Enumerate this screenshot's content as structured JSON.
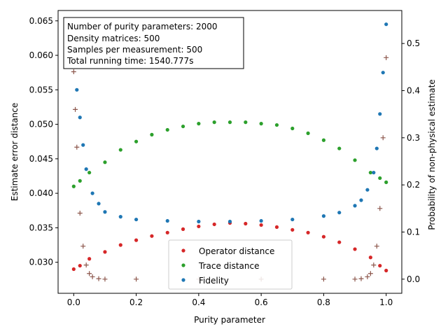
{
  "chart_data": {
    "type": "scatter",
    "xlabel": "Purity parameter",
    "ylabel": "Estimate error distance",
    "ylabel_right": "Probability of non-physical estimate",
    "xlim": [
      -0.05,
      1.05
    ],
    "ylim": [
      0.0255,
      0.0665
    ],
    "ylim_right": [
      -0.03,
      0.57
    ],
    "x_ticks": [
      0.0,
      0.2,
      0.4,
      0.6,
      0.8,
      1.0
    ],
    "x_tick_labels": [
      "0.0",
      "0.2",
      "0.4",
      "0.6",
      "0.8",
      "1.0"
    ],
    "y_ticks": [
      0.03,
      0.035,
      0.04,
      0.045,
      0.05,
      0.055,
      0.06,
      0.065
    ],
    "y_tick_labels": [
      "0.030",
      "0.035",
      "0.040",
      "0.045",
      "0.050",
      "0.055",
      "0.060",
      "0.065"
    ],
    "y_right_ticks": [
      0.0,
      0.1,
      0.2,
      0.3,
      0.4,
      0.5
    ],
    "y_right_tick_labels": [
      "0.0",
      "0.1",
      "0.2",
      "0.3",
      "0.4",
      "0.5"
    ],
    "grid": false,
    "legend_position": "bottom-center",
    "info_box": [
      "Number of purity parameters: 2000",
      "Density matrices: 500",
      "Samples per measurement: 500",
      "Total running time:  1540.777s"
    ],
    "series": [
      {
        "name": "Operator distance",
        "marker": "circle",
        "color": "#d62728",
        "axis": "left",
        "x": [
          0.0,
          0.02,
          0.05,
          0.1,
          0.15,
          0.2,
          0.25,
          0.3,
          0.35,
          0.4,
          0.45,
          0.5,
          0.55,
          0.6,
          0.65,
          0.7,
          0.75,
          0.8,
          0.85,
          0.9,
          0.95,
          0.98,
          1.0
        ],
        "y": [
          0.029,
          0.0295,
          0.0305,
          0.0315,
          0.0325,
          0.0332,
          0.0338,
          0.0343,
          0.0348,
          0.0352,
          0.0355,
          0.0357,
          0.0356,
          0.0354,
          0.0351,
          0.0347,
          0.0343,
          0.0337,
          0.0329,
          0.0319,
          0.0307,
          0.0295,
          0.0288
        ]
      },
      {
        "name": "Trace distance",
        "marker": "circle",
        "color": "#2ca02c",
        "axis": "left",
        "x": [
          0.0,
          0.02,
          0.05,
          0.1,
          0.15,
          0.2,
          0.25,
          0.3,
          0.35,
          0.4,
          0.45,
          0.5,
          0.55,
          0.6,
          0.65,
          0.7,
          0.75,
          0.8,
          0.85,
          0.9,
          0.95,
          0.98,
          1.0
        ],
        "y": [
          0.041,
          0.0418,
          0.043,
          0.0445,
          0.0463,
          0.0475,
          0.0485,
          0.0492,
          0.0497,
          0.0501,
          0.0503,
          0.0503,
          0.0503,
          0.0501,
          0.0499,
          0.0494,
          0.0487,
          0.0477,
          0.0465,
          0.0448,
          0.043,
          0.0422,
          0.0416
        ]
      },
      {
        "name": "Fidelity",
        "marker": "circle",
        "color": "#1f77b4",
        "axis": "left",
        "x": [
          0.0,
          0.005,
          0.01,
          0.02,
          0.03,
          0.04,
          0.06,
          0.08,
          0.1,
          0.15,
          0.2,
          0.3,
          0.4,
          0.5,
          0.6,
          0.7,
          0.8,
          0.85,
          0.9,
          0.92,
          0.94,
          0.96,
          0.97,
          0.98,
          0.99,
          1.0
        ],
        "y": [
          0.0605,
          0.0585,
          0.055,
          0.051,
          0.047,
          0.0435,
          0.04,
          0.0385,
          0.0373,
          0.0366,
          0.0362,
          0.036,
          0.0359,
          0.0359,
          0.036,
          0.0362,
          0.0367,
          0.0372,
          0.0382,
          0.039,
          0.0405,
          0.043,
          0.0465,
          0.0515,
          0.0575,
          0.0645
        ]
      },
      {
        "name": "",
        "marker": "plus",
        "color": "#8c564b",
        "axis": "right",
        "x": [
          0.0,
          0.005,
          0.01,
          0.02,
          0.03,
          0.04,
          0.05,
          0.06,
          0.08,
          0.1,
          0.2,
          0.4,
          0.6,
          0.8,
          0.9,
          0.92,
          0.94,
          0.95,
          0.96,
          0.97,
          0.98,
          0.99,
          1.0
        ],
        "y": [
          0.44,
          0.36,
          0.28,
          0.14,
          0.07,
          0.03,
          0.012,
          0.005,
          0.001,
          0.0,
          0.0,
          0.0,
          0.0,
          0.0,
          0.0,
          0.001,
          0.005,
          0.012,
          0.03,
          0.07,
          0.15,
          0.3,
          0.47
        ]
      }
    ]
  }
}
